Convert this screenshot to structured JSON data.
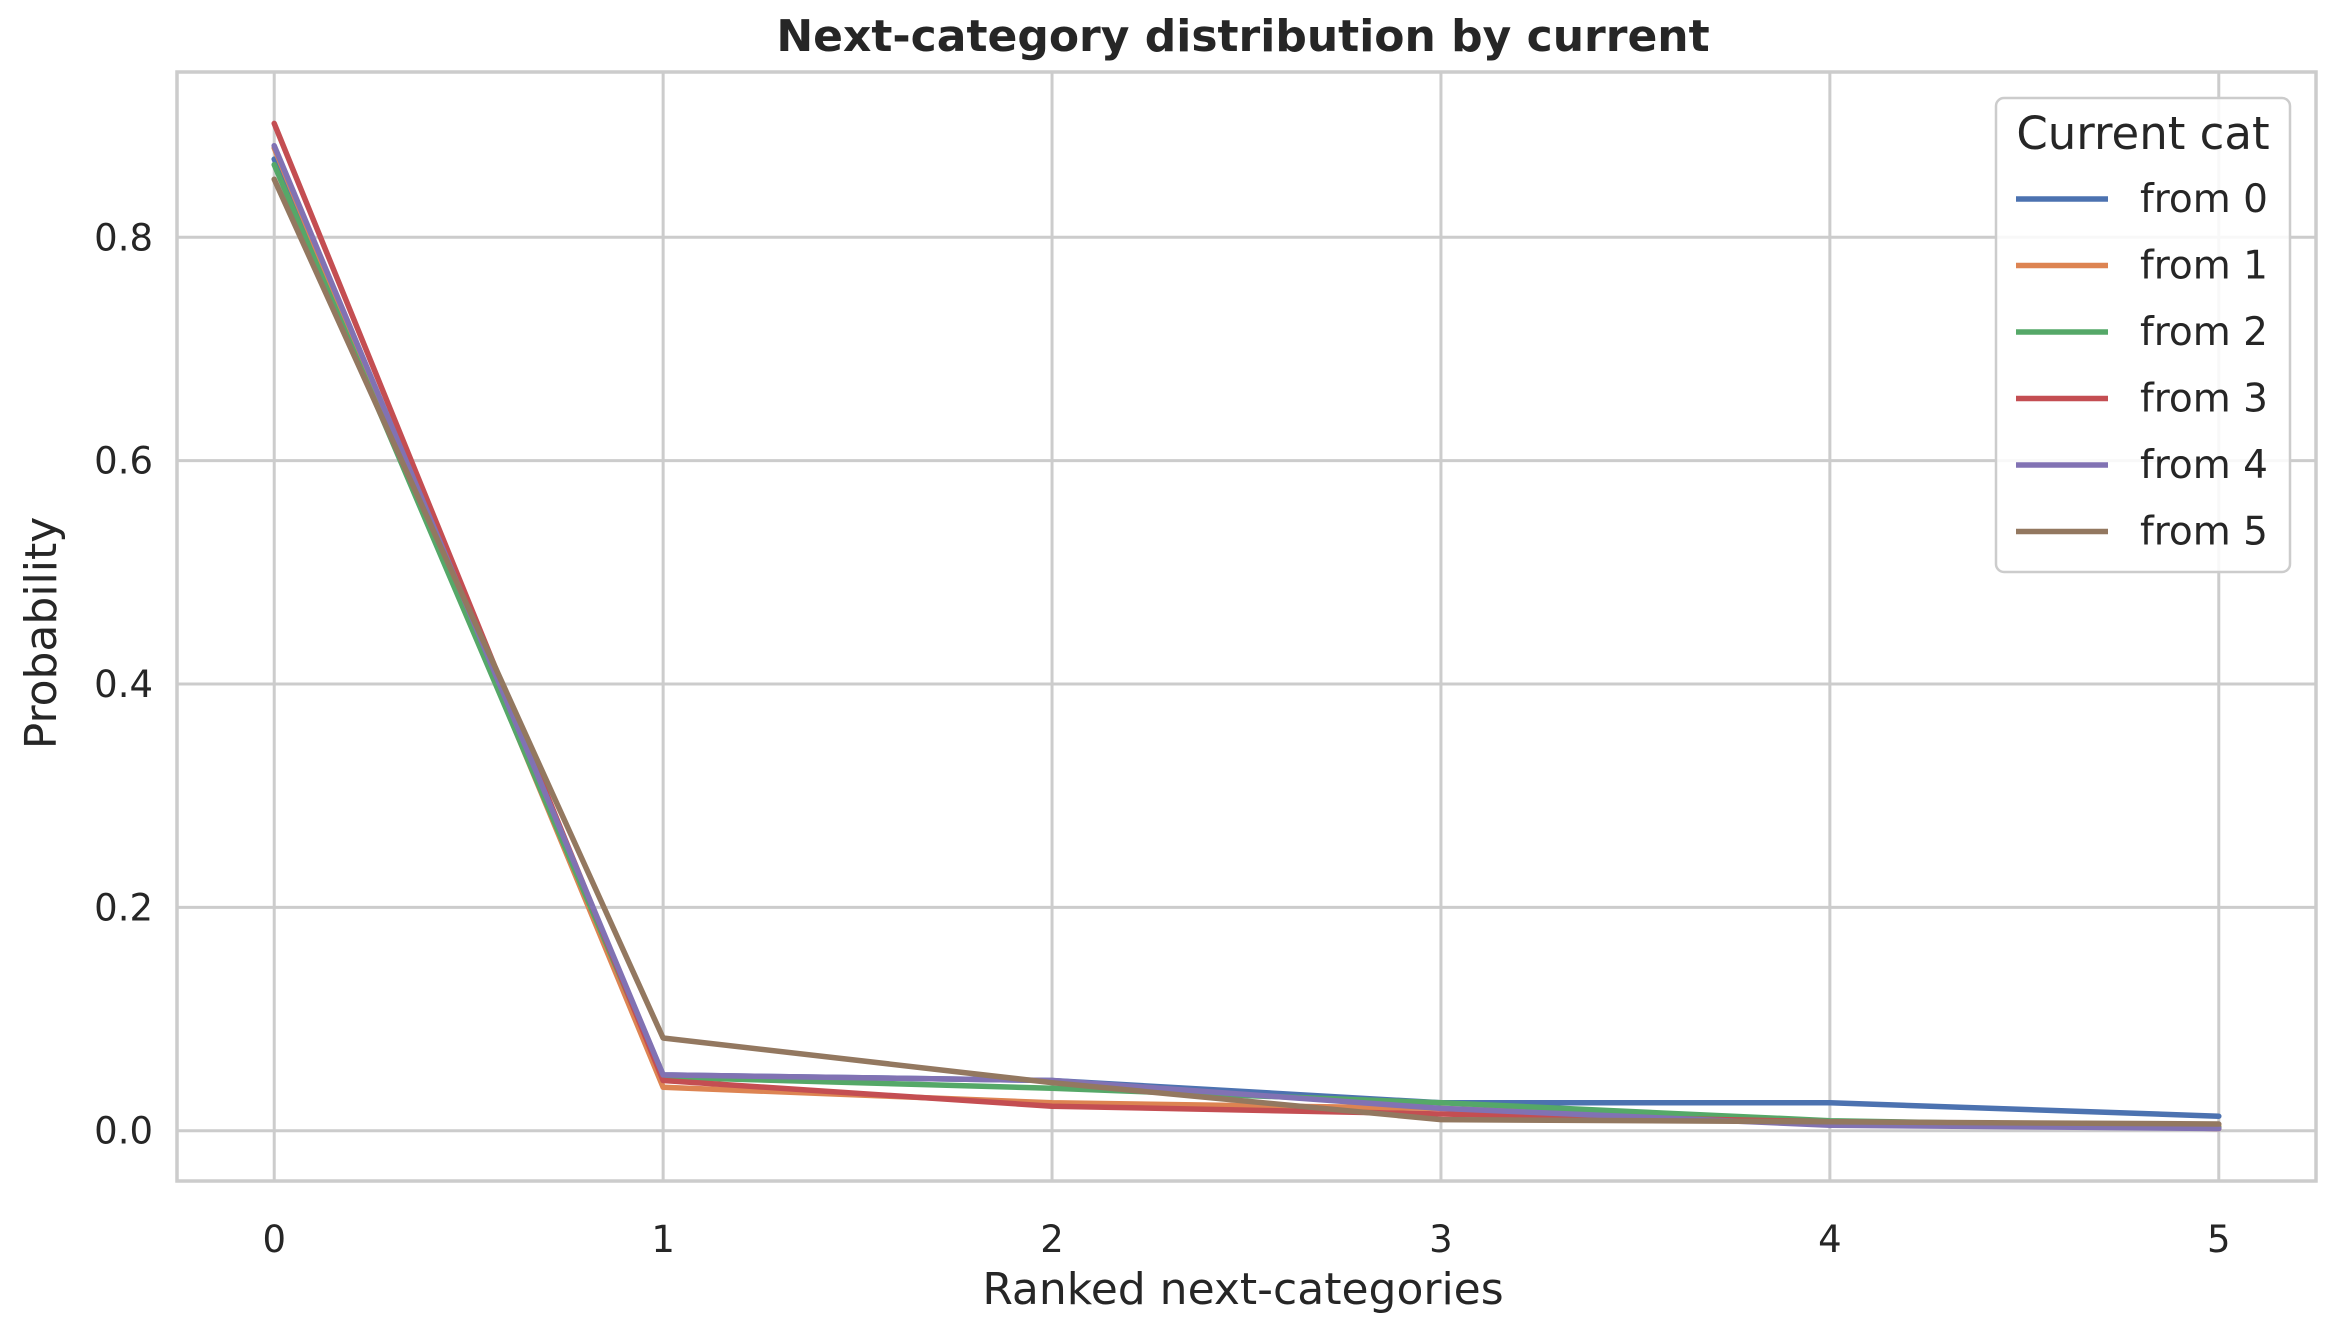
{
  "chart_data": {
    "type": "line",
    "title": "Next-category distribution by current",
    "xlabel": "Ranked next-categories",
    "ylabel": "Probability",
    "x": [
      0,
      1,
      2,
      3,
      4,
      5
    ],
    "xticks": [
      "0",
      "1",
      "2",
      "3",
      "4",
      "5"
    ],
    "yticks": [
      "0.0",
      "0.2",
      "0.4",
      "0.6",
      "0.8"
    ],
    "xlim": [
      -0.25,
      5.25
    ],
    "ylim": [
      -0.045,
      0.948
    ],
    "grid": true,
    "legend": {
      "title": "Current cat",
      "placement": "top-right"
    },
    "series": [
      {
        "name": "from 0",
        "color": "#4c72b0",
        "values": [
          0.87,
          0.05,
          0.045,
          0.025,
          0.025,
          0.013
        ]
      },
      {
        "name": "from 1",
        "color": "#dd8452",
        "values": [
          0.88,
          0.039,
          0.025,
          0.02,
          0.007,
          0.004
        ]
      },
      {
        "name": "from 2",
        "color": "#55a868",
        "values": [
          0.865,
          0.048,
          0.038,
          0.025,
          0.009,
          0.003
        ]
      },
      {
        "name": "from 3",
        "color": "#c44e52",
        "values": [
          0.902,
          0.045,
          0.022,
          0.015,
          0.008,
          0.002
        ]
      },
      {
        "name": "from 4",
        "color": "#8172b3",
        "values": [
          0.882,
          0.05,
          0.045,
          0.02,
          0.005,
          0.002
        ]
      },
      {
        "name": "from 5",
        "color": "#937860",
        "values": [
          0.852,
          0.083,
          0.043,
          0.01,
          0.008,
          0.006
        ]
      }
    ]
  }
}
